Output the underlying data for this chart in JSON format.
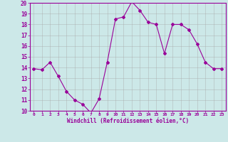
{
  "x": [
    0,
    1,
    2,
    3,
    4,
    5,
    6,
    7,
    8,
    9,
    10,
    11,
    12,
    13,
    14,
    15,
    16,
    17,
    18,
    19,
    20,
    21,
    22,
    23
  ],
  "y": [
    13.9,
    13.8,
    14.5,
    13.2,
    11.8,
    11.0,
    10.6,
    9.8,
    11.1,
    14.5,
    18.5,
    18.7,
    20.1,
    19.3,
    18.2,
    18.0,
    15.3,
    18.0,
    18.0,
    17.5,
    16.2,
    14.5,
    13.9,
    13.9
  ],
  "line_color": "#990099",
  "marker": "D",
  "marker_size": 2,
  "bg_color": "#cce8e8",
  "grid_color": "#aaaaaa",
  "xlabel": "Windchill (Refroidissement éolien,°C)",
  "xlabel_color": "#990099",
  "tick_color": "#990099",
  "ylim": [
    10,
    20
  ],
  "xlim": [
    -0.5,
    23.5
  ],
  "yticks": [
    10,
    11,
    12,
    13,
    14,
    15,
    16,
    17,
    18,
    19,
    20
  ],
  "xticks": [
    0,
    1,
    2,
    3,
    4,
    5,
    6,
    7,
    8,
    9,
    10,
    11,
    12,
    13,
    14,
    15,
    16,
    17,
    18,
    19,
    20,
    21,
    22,
    23
  ],
  "xtick_labels": [
    "0",
    "1",
    "2",
    "3",
    "4",
    "5",
    "6",
    "7",
    "8",
    "9",
    "10",
    "11",
    "12",
    "13",
    "14",
    "15",
    "16",
    "17",
    "18",
    "19",
    "20",
    "21",
    "22",
    "23"
  ],
  "ytick_labels": [
    "10",
    "11",
    "12",
    "13",
    "14",
    "15",
    "16",
    "17",
    "18",
    "19",
    "20"
  ]
}
